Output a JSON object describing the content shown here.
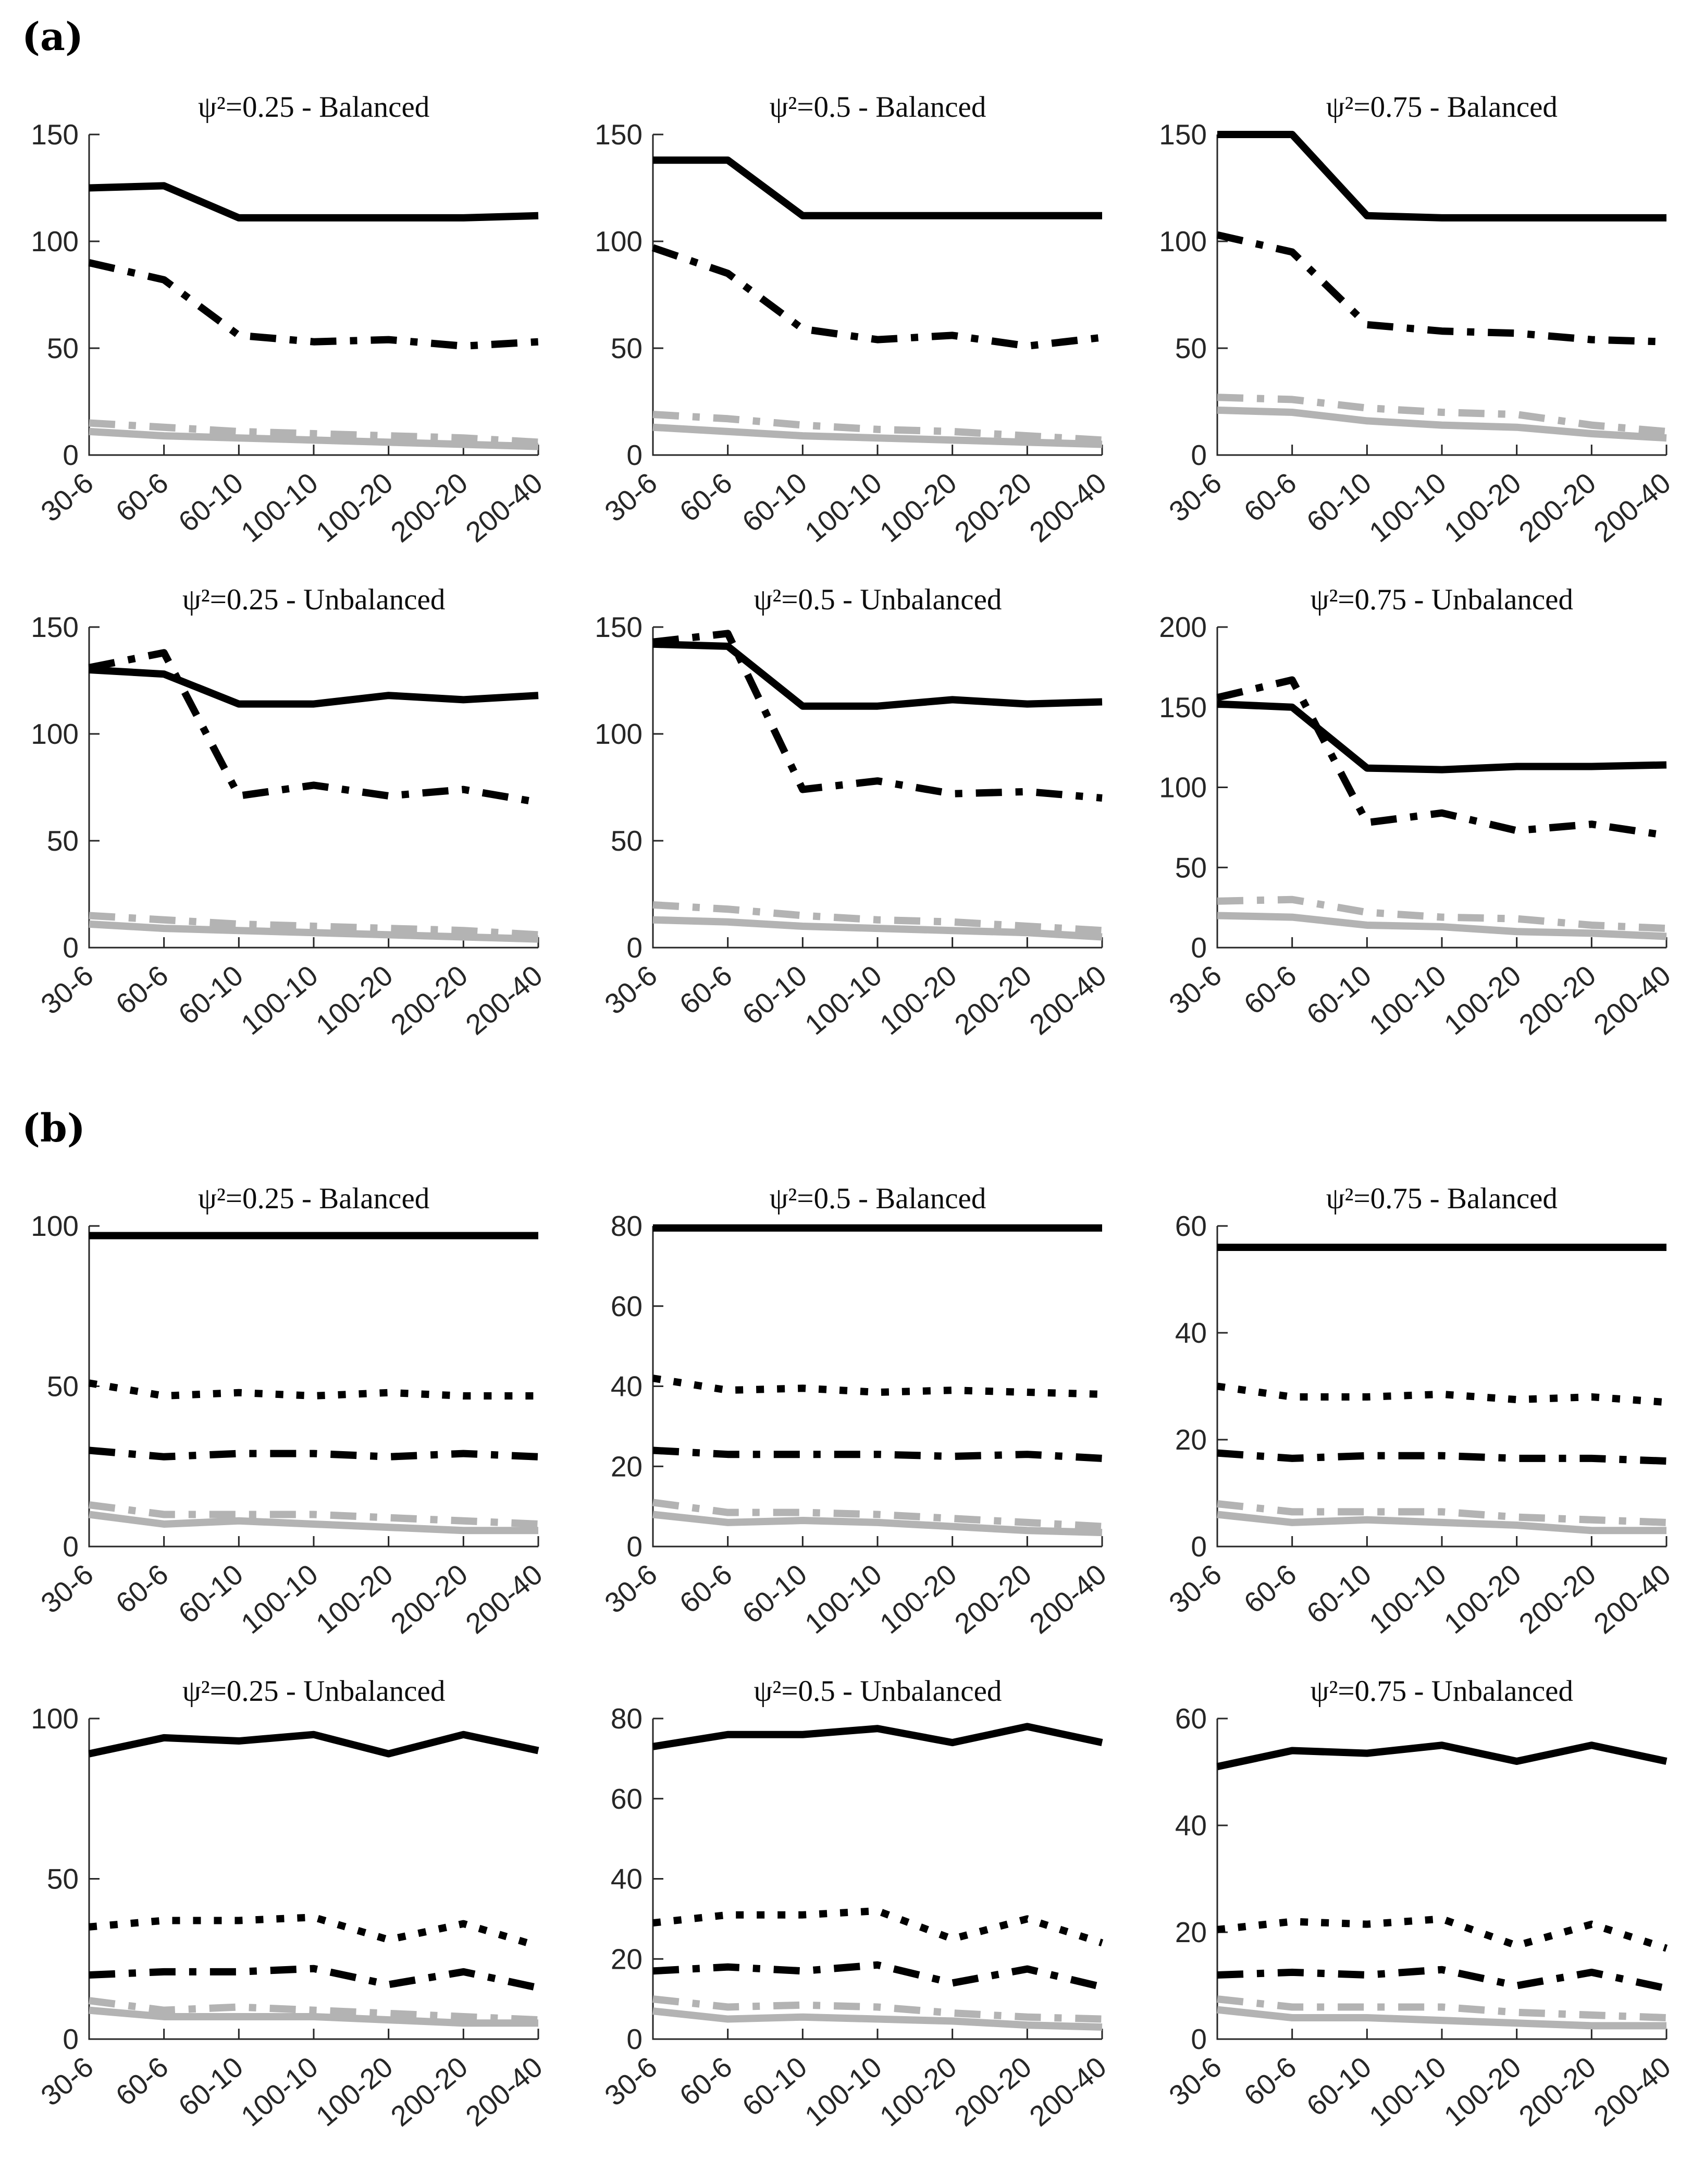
{
  "figure": {
    "panel_a_label": "(a)",
    "panel_b_label": "(b)"
  },
  "colors": {
    "black": "#000000",
    "gray": "#b3b3b3",
    "axis": "#262626"
  },
  "chart_data": [
    {
      "panel": "a",
      "type": "line",
      "title": "ψ²=0.25 - Balanced",
      "categories": [
        "30-6",
        "60-6",
        "60-10",
        "100-10",
        "100-20",
        "200-20",
        "200-40"
      ],
      "ylim": [
        0,
        150
      ],
      "yticks": [
        0,
        50,
        100,
        150
      ],
      "series": [
        {
          "name": "gray-solid",
          "color": "#b3b3b3",
          "style": "solid",
          "values": [
            11,
            9,
            8,
            7,
            6,
            5,
            4
          ]
        },
        {
          "name": "gray-dashdot",
          "color": "#b3b3b3",
          "style": "dashdot",
          "values": [
            15,
            13,
            11,
            10,
            9,
            8,
            6
          ]
        },
        {
          "name": "black-solid",
          "color": "#000000",
          "style": "solid",
          "values": [
            125,
            126,
            111,
            111,
            111,
            111,
            112
          ]
        },
        {
          "name": "black-dashdot",
          "color": "#000000",
          "style": "dashdot",
          "values": [
            90,
            82,
            56,
            53,
            54,
            51,
            53
          ]
        }
      ]
    },
    {
      "panel": "a",
      "type": "line",
      "title": "ψ²=0.5 - Balanced",
      "categories": [
        "30-6",
        "60-6",
        "60-10",
        "100-10",
        "100-20",
        "200-20",
        "200-40"
      ],
      "ylim": [
        0,
        150
      ],
      "yticks": [
        0,
        50,
        100,
        150
      ],
      "series": [
        {
          "name": "gray-solid",
          "color": "#b3b3b3",
          "style": "solid",
          "values": [
            13,
            11,
            9,
            8,
            7,
            6,
            5
          ]
        },
        {
          "name": "gray-dashdot",
          "color": "#b3b3b3",
          "style": "dashdot",
          "values": [
            19,
            17,
            14,
            12,
            11,
            9,
            7
          ]
        },
        {
          "name": "black-solid",
          "color": "#000000",
          "style": "solid",
          "values": [
            138,
            138,
            112,
            112,
            112,
            112,
            112
          ]
        },
        {
          "name": "black-dashdot",
          "color": "#000000",
          "style": "dashdot",
          "values": [
            97,
            85,
            59,
            54,
            56,
            51,
            55
          ]
        }
      ]
    },
    {
      "panel": "a",
      "type": "line",
      "title": "ψ²=0.75 - Balanced",
      "categories": [
        "30-6",
        "60-6",
        "60-10",
        "100-10",
        "100-20",
        "200-20",
        "200-40"
      ],
      "ylim": [
        0,
        150
      ],
      "yticks": [
        0,
        50,
        100,
        150
      ],
      "series": [
        {
          "name": "gray-solid",
          "color": "#b3b3b3",
          "style": "solid",
          "values": [
            21,
            20,
            16,
            14,
            13,
            10,
            8
          ]
        },
        {
          "name": "gray-dashdot",
          "color": "#b3b3b3",
          "style": "dashdot",
          "values": [
            27,
            26,
            22,
            20,
            19,
            14,
            11
          ]
        },
        {
          "name": "black-solid",
          "color": "#000000",
          "style": "solid",
          "values": [
            150,
            150,
            112,
            111,
            111,
            111,
            111
          ]
        },
        {
          "name": "black-dashdot",
          "color": "#000000",
          "style": "dashdot",
          "values": [
            103,
            95,
            61,
            58,
            57,
            54,
            53
          ]
        }
      ]
    },
    {
      "panel": "a",
      "type": "line",
      "title": "ψ²=0.25 - Unbalanced",
      "categories": [
        "30-6",
        "60-6",
        "60-10",
        "100-10",
        "100-20",
        "200-20",
        "200-40"
      ],
      "ylim": [
        0,
        150
      ],
      "yticks": [
        0,
        50,
        100,
        150
      ],
      "series": [
        {
          "name": "gray-solid",
          "color": "#b3b3b3",
          "style": "solid",
          "values": [
            11,
            9,
            8,
            7,
            6,
            5,
            4
          ]
        },
        {
          "name": "gray-dashdot",
          "color": "#b3b3b3",
          "style": "dashdot",
          "values": [
            15,
            13,
            11,
            10,
            9,
            8,
            6
          ]
        },
        {
          "name": "black-solid",
          "color": "#000000",
          "style": "solid",
          "values": [
            130,
            128,
            114,
            114,
            118,
            116,
            118
          ]
        },
        {
          "name": "black-dashdot",
          "color": "#000000",
          "style": "dashdot",
          "values": [
            131,
            138,
            71,
            76,
            71,
            74,
            68
          ]
        }
      ]
    },
    {
      "panel": "a",
      "type": "line",
      "title": "ψ²=0.5 - Unbalanced",
      "categories": [
        "30-6",
        "60-6",
        "60-10",
        "100-10",
        "100-20",
        "200-20",
        "200-40"
      ],
      "ylim": [
        0,
        150
      ],
      "yticks": [
        0,
        50,
        100,
        150
      ],
      "series": [
        {
          "name": "gray-solid",
          "color": "#b3b3b3",
          "style": "solid",
          "values": [
            13,
            12,
            10,
            9,
            8,
            7,
            5
          ]
        },
        {
          "name": "gray-dashdot",
          "color": "#b3b3b3",
          "style": "dashdot",
          "values": [
            20,
            18,
            15,
            13,
            12,
            10,
            8
          ]
        },
        {
          "name": "black-solid",
          "color": "#000000",
          "style": "solid",
          "values": [
            142,
            141,
            113,
            113,
            116,
            114,
            115
          ]
        },
        {
          "name": "black-dashdot",
          "color": "#000000",
          "style": "dashdot",
          "values": [
            143,
            147,
            74,
            78,
            72,
            73,
            70
          ]
        }
      ]
    },
    {
      "panel": "a",
      "type": "line",
      "title": "ψ²=0.75 - Unbalanced",
      "categories": [
        "30-6",
        "60-6",
        "60-10",
        "100-10",
        "100-20",
        "200-20",
        "200-40"
      ],
      "ylim": [
        0,
        200
      ],
      "yticks": [
        0,
        50,
        100,
        150,
        200
      ],
      "series": [
        {
          "name": "gray-solid",
          "color": "#b3b3b3",
          "style": "solid",
          "values": [
            20,
            19,
            14,
            13,
            10,
            9,
            7
          ]
        },
        {
          "name": "gray-dashdot",
          "color": "#b3b3b3",
          "style": "dashdot",
          "values": [
            29,
            30,
            22,
            19,
            18,
            14,
            12
          ]
        },
        {
          "name": "black-solid",
          "color": "#000000",
          "style": "solid",
          "values": [
            152,
            150,
            112,
            111,
            113,
            113,
            114
          ]
        },
        {
          "name": "black-dashdot",
          "color": "#000000",
          "style": "dashdot",
          "values": [
            156,
            167,
            78,
            84,
            73,
            77,
            70
          ]
        }
      ]
    },
    {
      "panel": "b",
      "type": "line",
      "title": "ψ²=0.25 - Balanced",
      "categories": [
        "30-6",
        "60-6",
        "60-10",
        "100-10",
        "100-20",
        "200-20",
        "200-40"
      ],
      "ylim": [
        0,
        100
      ],
      "yticks": [
        0,
        50,
        100
      ],
      "series": [
        {
          "name": "gray-solid",
          "color": "#b3b3b3",
          "style": "solid",
          "values": [
            10,
            7,
            8,
            7,
            6,
            5,
            5
          ]
        },
        {
          "name": "gray-dashdot",
          "color": "#b3b3b3",
          "style": "dashdot",
          "values": [
            13,
            10,
            10,
            10,
            9,
            8,
            7
          ]
        },
        {
          "name": "black-dotted",
          "color": "#000000",
          "style": "dotted",
          "values": [
            51,
            47,
            48,
            47,
            48,
            47,
            47
          ]
        },
        {
          "name": "black-dashdot",
          "color": "#000000",
          "style": "dashdot",
          "values": [
            30,
            28,
            29,
            29,
            28,
            29,
            28
          ]
        },
        {
          "name": "black-solid",
          "color": "#000000",
          "style": "solid",
          "values": [
            97,
            97,
            97,
            97,
            97,
            97,
            97
          ]
        }
      ]
    },
    {
      "panel": "b",
      "type": "line",
      "title": "ψ²=0.5 - Balanced",
      "categories": [
        "30-6",
        "60-6",
        "60-10",
        "100-10",
        "100-20",
        "200-20",
        "200-40"
      ],
      "ylim": [
        0,
        80
      ],
      "yticks": [
        0,
        20,
        40,
        60,
        80
      ],
      "series": [
        {
          "name": "gray-solid",
          "color": "#b3b3b3",
          "style": "solid",
          "values": [
            8,
            6,
            6.5,
            6,
            5,
            4,
            3.5
          ]
        },
        {
          "name": "gray-dashdot",
          "color": "#b3b3b3",
          "style": "dashdot",
          "values": [
            11,
            8.5,
            8.5,
            8,
            7,
            6,
            5
          ]
        },
        {
          "name": "black-dotted",
          "color": "#000000",
          "style": "dotted",
          "values": [
            42,
            39,
            39.5,
            38.5,
            39,
            38.5,
            38
          ]
        },
        {
          "name": "black-dashdot",
          "color": "#000000",
          "style": "dashdot",
          "values": [
            24,
            23,
            23,
            23,
            22.5,
            23,
            22
          ]
        },
        {
          "name": "black-solid",
          "color": "#000000",
          "style": "solid",
          "values": [
            79.5,
            79.5,
            79.5,
            79.5,
            79.5,
            79.5,
            79.5
          ]
        }
      ]
    },
    {
      "panel": "b",
      "type": "line",
      "title": "ψ²=0.75 - Balanced",
      "categories": [
        "30-6",
        "60-6",
        "60-10",
        "100-10",
        "100-20",
        "200-20",
        "200-40"
      ],
      "ylim": [
        0,
        60
      ],
      "yticks": [
        0,
        20,
        40,
        60
      ],
      "series": [
        {
          "name": "gray-solid",
          "color": "#b3b3b3",
          "style": "solid",
          "values": [
            6,
            4.5,
            5,
            4.5,
            4,
            3,
            3
          ]
        },
        {
          "name": "gray-dashdot",
          "color": "#b3b3b3",
          "style": "dashdot",
          "values": [
            8,
            6.5,
            6.5,
            6.5,
            5.5,
            5,
            4.5
          ]
        },
        {
          "name": "black-dotted",
          "color": "#000000",
          "style": "dotted",
          "values": [
            30,
            28,
            28,
            28.5,
            27.5,
            28,
            27
          ]
        },
        {
          "name": "black-dashdot",
          "color": "#000000",
          "style": "dashdot",
          "values": [
            17.5,
            16.5,
            17,
            17,
            16.5,
            16.5,
            16
          ]
        },
        {
          "name": "black-solid",
          "color": "#000000",
          "style": "solid",
          "values": [
            56,
            56,
            56,
            56,
            56,
            56,
            56
          ]
        }
      ]
    },
    {
      "panel": "b",
      "type": "line",
      "title": "ψ²=0.25 - Unbalanced",
      "categories": [
        "30-6",
        "60-6",
        "60-10",
        "100-10",
        "100-20",
        "200-20",
        "200-40"
      ],
      "ylim": [
        0,
        100
      ],
      "yticks": [
        0,
        50,
        100
      ],
      "series": [
        {
          "name": "gray-solid",
          "color": "#b3b3b3",
          "style": "solid",
          "values": [
            9,
            7,
            7,
            7,
            6,
            5,
            5
          ]
        },
        {
          "name": "gray-dashdot",
          "color": "#b3b3b3",
          "style": "dashdot",
          "values": [
            12,
            9,
            10,
            9,
            8,
            7,
            6
          ]
        },
        {
          "name": "black-dotted",
          "color": "#000000",
          "style": "dotted",
          "values": [
            35,
            37,
            37,
            38,
            31,
            36,
            29
          ]
        },
        {
          "name": "black-dashdot",
          "color": "#000000",
          "style": "dashdot",
          "values": [
            20,
            21,
            21,
            22,
            17,
            21,
            16
          ]
        },
        {
          "name": "black-solid",
          "color": "#000000",
          "style": "solid",
          "values": [
            89,
            94,
            93,
            95,
            89,
            95,
            90
          ]
        }
      ]
    },
    {
      "panel": "b",
      "type": "line",
      "title": "ψ²=0.5 - Unbalanced",
      "categories": [
        "30-6",
        "60-6",
        "60-10",
        "100-10",
        "100-20",
        "200-20",
        "200-40"
      ],
      "ylim": [
        0,
        80
      ],
      "yticks": [
        0,
        20,
        40,
        60,
        80
      ],
      "series": [
        {
          "name": "gray-solid",
          "color": "#b3b3b3",
          "style": "solid",
          "values": [
            7,
            5,
            5.5,
            5,
            4.5,
            3.5,
            3
          ]
        },
        {
          "name": "gray-dashdot",
          "color": "#b3b3b3",
          "style": "dashdot",
          "values": [
            10,
            8,
            8.5,
            8,
            6.5,
            5.5,
            5
          ]
        },
        {
          "name": "black-dotted",
          "color": "#000000",
          "style": "dotted",
          "values": [
            29,
            31,
            31,
            32,
            25,
            30,
            24
          ]
        },
        {
          "name": "black-dashdot",
          "color": "#000000",
          "style": "dashdot",
          "values": [
            17,
            18,
            17,
            18.5,
            14,
            17.5,
            13
          ]
        },
        {
          "name": "black-solid",
          "color": "#000000",
          "style": "solid",
          "values": [
            73,
            76,
            76,
            77.5,
            74,
            78,
            74
          ]
        }
      ]
    },
    {
      "panel": "b",
      "type": "line",
      "title": "ψ²=0.75 - Unbalanced",
      "categories": [
        "30-6",
        "60-6",
        "60-10",
        "100-10",
        "100-20",
        "200-20",
        "200-40"
      ],
      "ylim": [
        0,
        60
      ],
      "yticks": [
        0,
        20,
        40,
        60
      ],
      "series": [
        {
          "name": "gray-solid",
          "color": "#b3b3b3",
          "style": "solid",
          "values": [
            5.5,
            4,
            4,
            3.5,
            3,
            2.5,
            2.5
          ]
        },
        {
          "name": "gray-dashdot",
          "color": "#b3b3b3",
          "style": "dashdot",
          "values": [
            7.5,
            6,
            6,
            6,
            5,
            4.5,
            4
          ]
        },
        {
          "name": "black-dotted",
          "color": "#000000",
          "style": "dotted",
          "values": [
            20.5,
            22,
            21.5,
            22.5,
            17.5,
            21.5,
            17
          ]
        },
        {
          "name": "black-dashdot",
          "color": "#000000",
          "style": "dashdot",
          "values": [
            12,
            12.5,
            12,
            13,
            10,
            12.5,
            9.5
          ]
        },
        {
          "name": "black-solid",
          "color": "#000000",
          "style": "solid",
          "values": [
            51,
            54,
            53.5,
            55,
            52,
            55,
            52
          ]
        }
      ]
    }
  ]
}
